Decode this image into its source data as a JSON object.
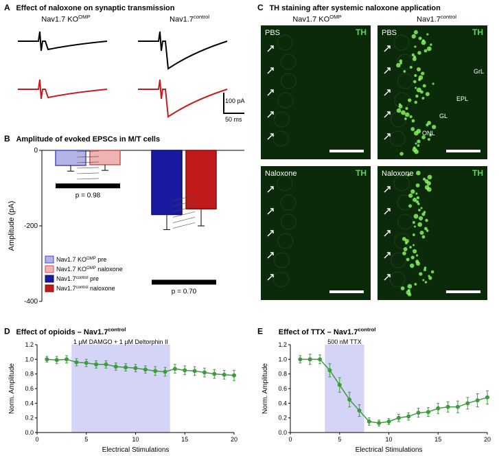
{
  "panelA": {
    "label": "A",
    "title": "Effect of naloxone on synaptic transmission",
    "col1_title": "Nav1.7 KO",
    "col1_sup": "OMP",
    "col2_title": "Nav1.7",
    "col2_sup": "control",
    "trace_black": "#000000",
    "trace_red": "#cc1a1a",
    "scale_y_label": "100 pA",
    "scale_x_label": "50 ms"
  },
  "panelB": {
    "label": "B",
    "title": "Amplitude of evoked EPSCs in M/T cells",
    "ylabel": "Amplitude (pA)",
    "ylim": [
      -400,
      0
    ],
    "yticks": [
      0,
      -200,
      -400
    ],
    "bars": {
      "ko_pre": {
        "value": -40,
        "err": 15,
        "color": "#b3b3e6",
        "border": "#4a4ac0"
      },
      "ko_nal": {
        "value": -38,
        "err": 15,
        "color": "#f0b3b3",
        "border": "#d05050"
      },
      "ctrl_pre": {
        "value": -170,
        "err": 40,
        "color": "#1a1aa0",
        "border": "#0a0a60"
      },
      "ctrl_nal": {
        "value": -155,
        "err": 45,
        "color": "#c01a1a",
        "border": "#801010"
      }
    },
    "p_left": "p = 0.98",
    "p_right": "p = 0.70",
    "legend": [
      {
        "text_pre": "Nav1.7 KO",
        "sup": "OMP",
        "text_post": " pre",
        "color": "#b3b3e6",
        "border": "#4a4ac0"
      },
      {
        "text_pre": "Nav1.7 KO",
        "sup": "OMP",
        "text_post": " naloxone",
        "color": "#f0b3b3",
        "border": "#d05050"
      },
      {
        "text_pre": "Nav1.7",
        "sup": "control",
        "text_post": " pre",
        "color": "#1a1aa0",
        "border": "#0a0a60"
      },
      {
        "text_pre": "Nav1.7",
        "sup": "control",
        "text_post": " naloxone",
        "color": "#c01a1a",
        "border": "#801010"
      }
    ]
  },
  "panelC": {
    "label": "C",
    "title": "TH staining after systemic naloxone application",
    "col1_title": "Nav1.7 KO",
    "col1_sup": "OMP",
    "col2_title": "Nav1.7",
    "col2_sup": "control",
    "row1_label": "PBS",
    "row2_label": "Naloxone",
    "stain_label": "TH",
    "stain_color": "#5fd35f",
    "bg_color": "#0a2a0a",
    "bright_color": "#8fff60",
    "labels": [
      "ONL",
      "GL",
      "EPL",
      "GrL"
    ]
  },
  "panelD": {
    "label": "D",
    "title_pre": "Effect of opioids – Nav1.7",
    "title_sup": "control",
    "drug_label": "1 µM DAMGO + 1 µM Deltorphin II",
    "xlabel": "Electrical Stimulations",
    "ylabel": "Norm. Amplitude",
    "xlim": [
      0,
      20
    ],
    "ylim": [
      0,
      1.2
    ],
    "yticks": [
      0,
      0.2,
      0.4,
      0.6,
      0.8,
      1.0,
      1.2
    ],
    "xticks": [
      0,
      5,
      10,
      15,
      20
    ],
    "shade_x": [
      3.5,
      13.5
    ],
    "shade_color": "#b8b8f0",
    "line_color": "#3d9a3d",
    "data": [
      {
        "x": 1,
        "y": 1.0,
        "e": 0.04
      },
      {
        "x": 2,
        "y": 0.99,
        "e": 0.05
      },
      {
        "x": 3,
        "y": 1.0,
        "e": 0.05
      },
      {
        "x": 4,
        "y": 0.96,
        "e": 0.05
      },
      {
        "x": 5,
        "y": 0.95,
        "e": 0.05
      },
      {
        "x": 6,
        "y": 0.93,
        "e": 0.05
      },
      {
        "x": 7,
        "y": 0.93,
        "e": 0.05
      },
      {
        "x": 8,
        "y": 0.9,
        "e": 0.05
      },
      {
        "x": 9,
        "y": 0.89,
        "e": 0.05
      },
      {
        "x": 10,
        "y": 0.88,
        "e": 0.05
      },
      {
        "x": 11,
        "y": 0.86,
        "e": 0.05
      },
      {
        "x": 12,
        "y": 0.84,
        "e": 0.06
      },
      {
        "x": 13,
        "y": 0.83,
        "e": 0.06
      },
      {
        "x": 14,
        "y": 0.87,
        "e": 0.06
      },
      {
        "x": 15,
        "y": 0.85,
        "e": 0.06
      },
      {
        "x": 16,
        "y": 0.84,
        "e": 0.06
      },
      {
        "x": 17,
        "y": 0.82,
        "e": 0.06
      },
      {
        "x": 18,
        "y": 0.8,
        "e": 0.06
      },
      {
        "x": 19,
        "y": 0.79,
        "e": 0.06
      },
      {
        "x": 20,
        "y": 0.78,
        "e": 0.07
      }
    ]
  },
  "panelE": {
    "label": "E",
    "title_pre": "Effect of TTX – Nav1.7",
    "title_sup": "control",
    "drug_label": "500 nM TTX",
    "xlabel": "Electrical Stimulations",
    "ylabel": "Norm. Amplitude",
    "xlim": [
      0,
      20
    ],
    "ylim": [
      0,
      1.2
    ],
    "yticks": [
      0,
      0.2,
      0.4,
      0.6,
      0.8,
      1.0,
      1.2
    ],
    "xticks": [
      0,
      5,
      10,
      15,
      20
    ],
    "shade_x": [
      3.5,
      7.5
    ],
    "shade_color": "#b8b8f0",
    "line_color": "#3d9a3d",
    "data": [
      {
        "x": 1,
        "y": 1.0,
        "e": 0.05
      },
      {
        "x": 2,
        "y": 1.0,
        "e": 0.07
      },
      {
        "x": 3,
        "y": 1.0,
        "e": 0.06
      },
      {
        "x": 4,
        "y": 0.85,
        "e": 0.09
      },
      {
        "x": 5,
        "y": 0.65,
        "e": 0.1
      },
      {
        "x": 6,
        "y": 0.45,
        "e": 0.1
      },
      {
        "x": 7,
        "y": 0.3,
        "e": 0.08
      },
      {
        "x": 8,
        "y": 0.15,
        "e": 0.05
      },
      {
        "x": 9,
        "y": 0.13,
        "e": 0.04
      },
      {
        "x": 10,
        "y": 0.15,
        "e": 0.04
      },
      {
        "x": 11,
        "y": 0.2,
        "e": 0.05
      },
      {
        "x": 12,
        "y": 0.22,
        "e": 0.05
      },
      {
        "x": 13,
        "y": 0.27,
        "e": 0.06
      },
      {
        "x": 14,
        "y": 0.28,
        "e": 0.06
      },
      {
        "x": 15,
        "y": 0.33,
        "e": 0.07
      },
      {
        "x": 16,
        "y": 0.35,
        "e": 0.07
      },
      {
        "x": 17,
        "y": 0.35,
        "e": 0.08
      },
      {
        "x": 18,
        "y": 0.4,
        "e": 0.08
      },
      {
        "x": 19,
        "y": 0.44,
        "e": 0.09
      },
      {
        "x": 20,
        "y": 0.48,
        "e": 0.09
      }
    ]
  }
}
